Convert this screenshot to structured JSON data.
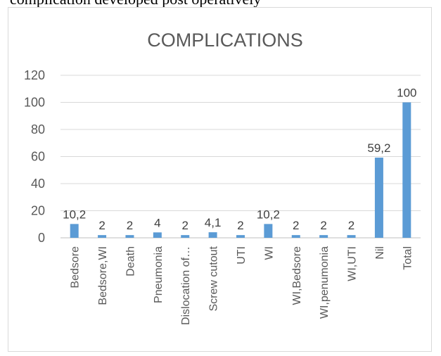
{
  "page": {
    "top_text": "complication developed post operatively"
  },
  "chart_data": {
    "type": "bar",
    "title": "COMPLICATIONS",
    "categories": [
      "Bedsore",
      "Bedsore,WI",
      "Death",
      "Pneumonia",
      "Dislocation of…",
      "Screw cutout",
      "UTI",
      "WI",
      "WI,Bedsore",
      "WI,penumonia",
      "WI,UTI",
      "Nil",
      "Total"
    ],
    "values": [
      10.2,
      2,
      2,
      4,
      2,
      4.1,
      2,
      10.2,
      2,
      2,
      2,
      59.2,
      100
    ],
    "data_labels": [
      "10,2",
      "2",
      "2",
      "4",
      "2",
      "4,1",
      "2",
      "10,2",
      "2",
      "2",
      "2",
      "59,2",
      "100"
    ],
    "yticks": [
      "0",
      "20",
      "40",
      "60",
      "80",
      "100",
      "120"
    ],
    "ylim": [
      0,
      120
    ],
    "xlabel": "",
    "ylabel": "",
    "grid": true,
    "legend": "none",
    "colors": {
      "bar": "#5b9bd5",
      "grid": "#d9d9d9",
      "text": "#595959"
    }
  }
}
